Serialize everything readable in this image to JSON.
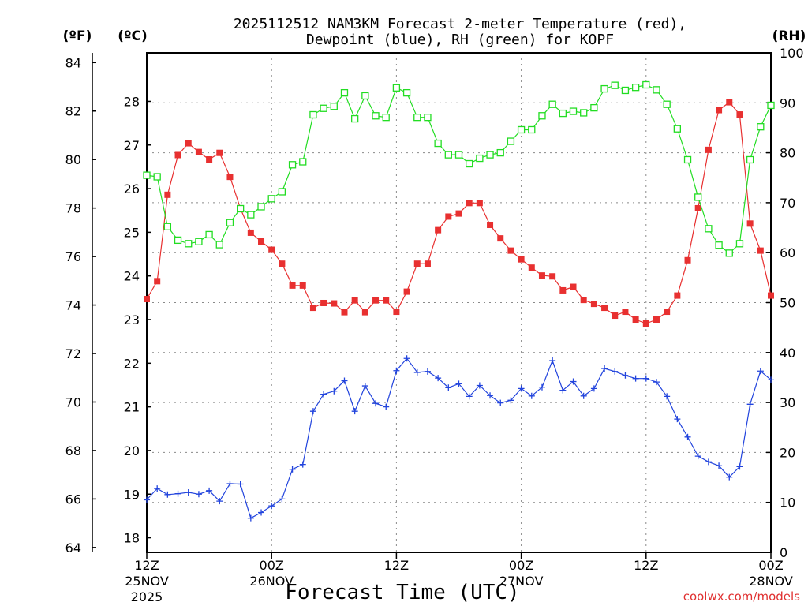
{
  "chart_data": {
    "type": "line",
    "title_line1": "2025112512 NAM3KM Forecast 2-meter Temperature (red),",
    "title_line2": "Dewpoint (blue), RH (green) for KOPF",
    "xlabel": "Forecast Time (UTC)",
    "credit": "coolwx.com/models",
    "units": {
      "f": "(ºF)",
      "c": "(ºC)",
      "rh": "(RH)"
    },
    "x_range_hours": [
      0,
      60
    ],
    "y_celsius_range": [
      17.6667,
      29.1111
    ],
    "y_rh_range": [
      0,
      100
    ],
    "y_fahrenheit_range": [
      63.8,
      84.4
    ],
    "x_ticks": [
      {
        "hour": 0,
        "label": "12Z",
        "label2": "25NOV",
        "label3": "2025"
      },
      {
        "hour": 12,
        "label": "00Z",
        "label2": "26NOV",
        "label3": ""
      },
      {
        "hour": 24,
        "label": "12Z",
        "label2": "",
        "label3": ""
      },
      {
        "hour": 36,
        "label": "00Z",
        "label2": "27NOV",
        "label3": ""
      },
      {
        "hour": 48,
        "label": "12Z",
        "label2": "",
        "label3": ""
      },
      {
        "hour": 60,
        "label": "00Z",
        "label2": "28NOV",
        "label3": ""
      }
    ],
    "fahrenheit_ticks": [
      "64",
      "66",
      "68",
      "70",
      "72",
      "74",
      "76",
      "78",
      "80",
      "82",
      "84"
    ],
    "celsius_ticks": [
      "18",
      "19",
      "20",
      "21",
      "22",
      "23",
      "24",
      "25",
      "26",
      "27",
      "28"
    ],
    "rh_ticks": [
      "0",
      "10",
      "20",
      "30",
      "40",
      "50",
      "60",
      "70",
      "80",
      "90",
      "100"
    ],
    "series": [
      {
        "name": "2-meter Temperature",
        "unit": "C",
        "color": "#e83030",
        "marker": "filled-square",
        "hours": [
          0,
          1,
          2,
          3,
          4,
          5,
          6,
          7,
          8,
          9,
          10,
          11,
          12,
          13,
          14,
          15,
          16,
          17,
          18,
          19,
          20,
          21,
          22,
          23,
          24,
          25,
          26,
          27,
          28,
          29,
          30,
          31,
          32,
          33,
          34,
          35,
          36,
          37,
          38,
          39,
          40,
          41,
          42,
          43,
          44,
          45,
          46,
          47,
          48,
          49,
          50,
          51,
          52,
          53,
          54,
          55,
          56,
          57,
          58,
          59,
          60
        ],
        "values": [
          23.47,
          23.88,
          25.86,
          26.77,
          27.04,
          26.84,
          26.67,
          26.82,
          26.27,
          25.55,
          24.99,
          24.79,
          24.6,
          24.28,
          23.78,
          23.78,
          23.27,
          23.38,
          23.37,
          23.17,
          23.44,
          23.17,
          23.44,
          23.44,
          23.18,
          23.64,
          24.28,
          24.28,
          25.05,
          25.36,
          25.43,
          25.67,
          25.67,
          25.17,
          24.86,
          24.58,
          24.38,
          24.19,
          24.01,
          23.99,
          23.67,
          23.75,
          23.45,
          23.36,
          23.27,
          23.09,
          23.18,
          23.0,
          22.91,
          23.0,
          23.18,
          23.55,
          24.36,
          25.55,
          26.89,
          27.8,
          27.98,
          27.7,
          25.2,
          24.58,
          23.55
        ]
      },
      {
        "name": "Dewpoint",
        "unit": "C",
        "color": "#2244dd",
        "marker": "plus",
        "hours": [
          0,
          1,
          2,
          3,
          4,
          5,
          6,
          7,
          8,
          9,
          10,
          11,
          12,
          13,
          14,
          15,
          16,
          17,
          18,
          19,
          20,
          21,
          22,
          23,
          24,
          25,
          26,
          27,
          28,
          29,
          30,
          31,
          32,
          33,
          34,
          35,
          36,
          37,
          38,
          39,
          40,
          41,
          42,
          43,
          44,
          45,
          46,
          47,
          48,
          49,
          50,
          51,
          52,
          53,
          54,
          55,
          56,
          57,
          58,
          59,
          60
        ],
        "values": [
          18.87,
          19.13,
          18.99,
          19.01,
          19.04,
          19.0,
          19.08,
          18.84,
          19.24,
          19.23,
          18.45,
          18.58,
          18.73,
          18.89,
          19.57,
          19.68,
          20.9,
          21.29,
          21.36,
          21.6,
          20.9,
          21.48,
          21.08,
          21.0,
          21.83,
          22.11,
          21.79,
          21.81,
          21.66,
          21.44,
          21.53,
          21.24,
          21.49,
          21.26,
          21.09,
          21.15,
          21.42,
          21.25,
          21.45,
          22.06,
          21.38,
          21.58,
          21.25,
          21.42,
          21.88,
          21.81,
          21.72,
          21.65,
          21.65,
          21.57,
          21.24,
          20.72,
          20.31,
          19.87,
          19.74,
          19.65,
          19.39,
          19.63,
          21.06,
          21.82,
          21.62
        ]
      },
      {
        "name": "Relative Humidity",
        "unit": "%",
        "color": "#22dd22",
        "marker": "open-square",
        "hours": [
          0,
          1,
          2,
          3,
          4,
          5,
          6,
          7,
          8,
          9,
          10,
          11,
          12,
          13,
          14,
          15,
          16,
          17,
          18,
          19,
          20,
          21,
          22,
          23,
          24,
          25,
          26,
          27,
          28,
          29,
          30,
          31,
          32,
          33,
          34,
          35,
          36,
          37,
          38,
          39,
          40,
          41,
          42,
          43,
          44,
          45,
          46,
          47,
          48,
          49,
          50,
          51,
          52,
          53,
          54,
          55,
          56,
          57,
          58,
          59,
          60
        ],
        "values": [
          75.5,
          75.2,
          65.2,
          62.5,
          61.8,
          62.2,
          63.6,
          61.6,
          66.0,
          68.8,
          67.6,
          69.2,
          70.8,
          72.2,
          77.6,
          78.2,
          87.6,
          88.9,
          89.3,
          92.0,
          86.8,
          91.4,
          87.4,
          87.1,
          93.0,
          92.0,
          87.1,
          87.1,
          81.9,
          79.6,
          79.6,
          77.8,
          78.9,
          79.6,
          80.0,
          82.3,
          84.6,
          84.6,
          87.4,
          89.7,
          87.9,
          88.3,
          88.0,
          89.0,
          92.8,
          93.5,
          92.5,
          93.1,
          93.6,
          92.6,
          89.7,
          84.8,
          78.6,
          71.1,
          64.8,
          61.5,
          59.9,
          61.8,
          78.6,
          85.2,
          89.5
        ]
      }
    ]
  }
}
